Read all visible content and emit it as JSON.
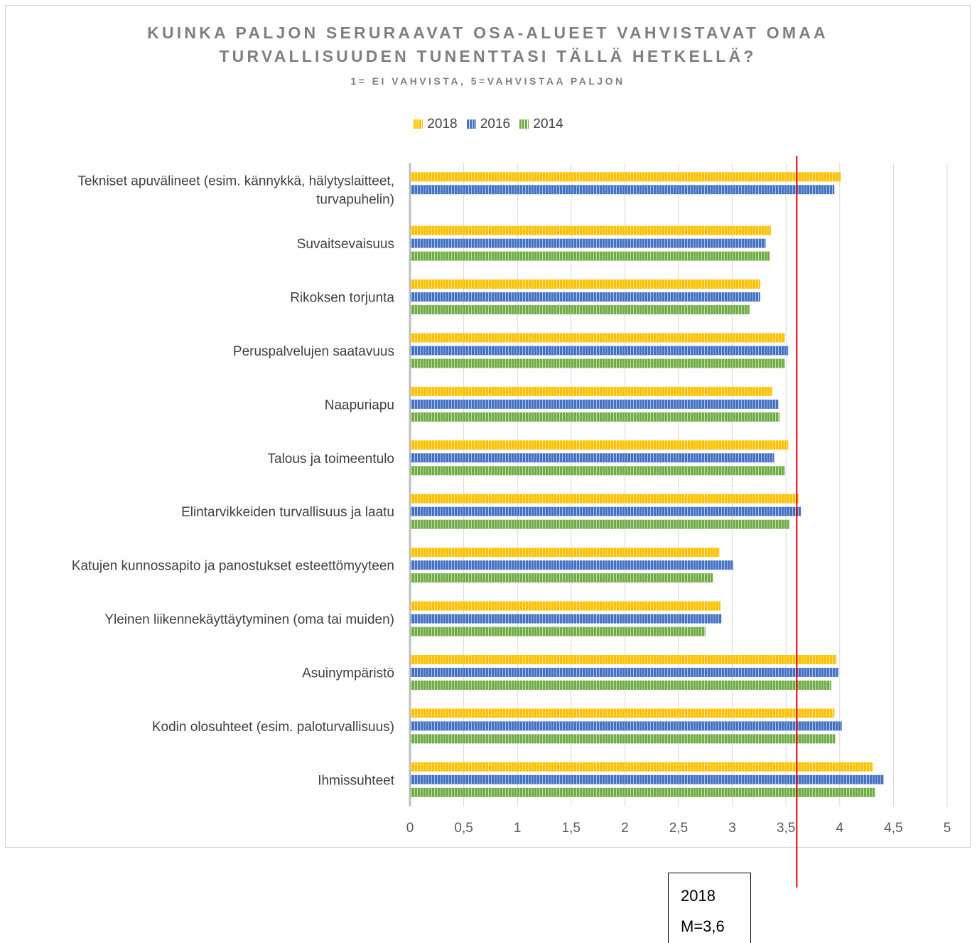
{
  "chart_data": {
    "type": "bar",
    "orientation": "horizontal",
    "title": "KUINKA PALJON SERURAAVAT OSA-ALUEET VAHVISTAVAT OMAA TURVALLISUUDEN TUNENTTASI TÄLLÄ HETKELLÄ?",
    "title_lines": [
      "KUINKA PALJON SERURAAVAT OSA-ALUEET VAHVISTAVAT OMAA",
      "TURVALLISUUDEN TUNENTTASI TÄLLÄ HETKELLÄ?"
    ],
    "subtitle": "1= EI VAHVISTA, 5=VAHVISTAA PALJON",
    "categories": [
      [
        "Tekniset apuvälineet (esim. kännykkä, hälytyslaitteet,",
        "turvapuhelin)"
      ],
      [
        "Suvaitsevaisuus"
      ],
      [
        "Rikoksen torjunta"
      ],
      [
        "Peruspalvelujen saatavuus"
      ],
      [
        "Naapuriapu"
      ],
      [
        "Talous ja toimeentulo"
      ],
      [
        "Elintarvikkeiden turvallisuus ja laatu"
      ],
      [
        "Katujen kunnossapito ja panostukset esteettömyyteen"
      ],
      [
        "Yleinen liikennekäyttäytyminen (oma tai muiden)"
      ],
      [
        "Asuinympäristö"
      ],
      [
        "Kodin olosuhteet (esim. paloturvallisuus)"
      ],
      [
        "Ihmissuhteet"
      ]
    ],
    "series": [
      {
        "name": "2018",
        "color": "#ffc000",
        "values": [
          4.01,
          3.36,
          3.26,
          3.49,
          3.37,
          3.52,
          3.62,
          2.88,
          2.89,
          3.97,
          3.95,
          4.31
        ]
      },
      {
        "name": "2016",
        "color": "#4472c4",
        "values": [
          3.95,
          3.31,
          3.26,
          3.52,
          3.43,
          3.39,
          3.64,
          3.01,
          2.9,
          3.99,
          4.02,
          4.41
        ]
      },
      {
        "name": "2014",
        "color": "#70ad47",
        "values": [
          null,
          3.35,
          3.16,
          3.49,
          3.44,
          3.49,
          3.53,
          2.82,
          2.75,
          3.92,
          3.96,
          4.33
        ]
      }
    ],
    "xlim": [
      0,
      5
    ],
    "xticks": [
      0,
      0.5,
      1,
      1.5,
      2,
      2.5,
      3,
      3.5,
      4,
      4.5,
      5
    ],
    "xtick_labels": [
      "0",
      "0,5",
      "1",
      "1,5",
      "2",
      "2,5",
      "3",
      "3,5",
      "4",
      "4,5",
      "5"
    ],
    "grid": true,
    "legend_position": "top",
    "reference_line": {
      "value": 3.6,
      "color": "#e00000",
      "label_lines": [
        "2018",
        "M=3,6"
      ]
    }
  }
}
